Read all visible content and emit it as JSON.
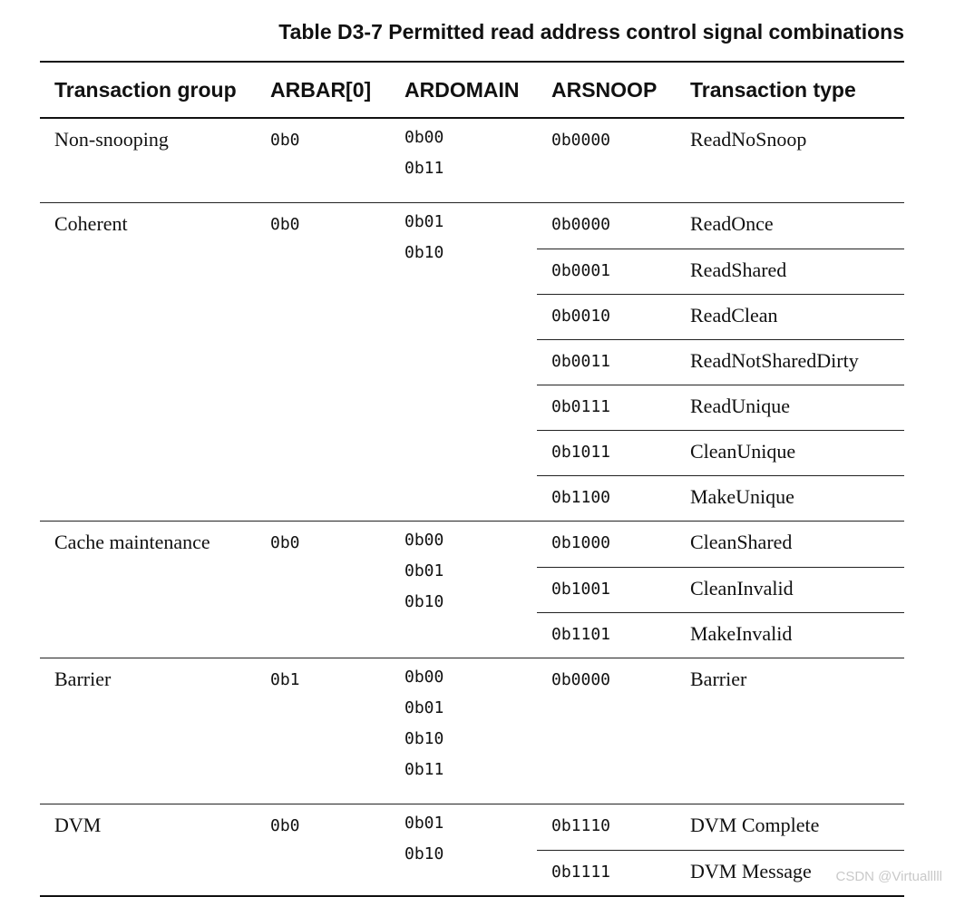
{
  "table": {
    "caption": "Table D3-7 Permitted read address control signal combinations",
    "headers": [
      "Transaction group",
      "ARBAR[0]",
      "ARDOMAIN",
      "ARSNOOP",
      "Transaction type"
    ],
    "groups": [
      {
        "group": "Non-snooping",
        "arbar": "0b0",
        "ardomain": [
          "0b00",
          "0b11"
        ],
        "rows": [
          {
            "arsnoop": "0b0000",
            "type": "ReadNoSnoop"
          }
        ]
      },
      {
        "group": "Coherent",
        "arbar": "0b0",
        "ardomain": [
          "0b01",
          "0b10"
        ],
        "rows": [
          {
            "arsnoop": "0b0000",
            "type": "ReadOnce"
          },
          {
            "arsnoop": "0b0001",
            "type": "ReadShared"
          },
          {
            "arsnoop": "0b0010",
            "type": "ReadClean"
          },
          {
            "arsnoop": "0b0011",
            "type": "ReadNotSharedDirty"
          },
          {
            "arsnoop": "0b0111",
            "type": "ReadUnique"
          },
          {
            "arsnoop": "0b1011",
            "type": "CleanUnique"
          },
          {
            "arsnoop": "0b1100",
            "type": "MakeUnique"
          }
        ]
      },
      {
        "group": "Cache maintenance",
        "arbar": "0b0",
        "ardomain": [
          "0b00",
          "0b01",
          "0b10"
        ],
        "rows": [
          {
            "arsnoop": "0b1000",
            "type": "CleanShared"
          },
          {
            "arsnoop": "0b1001",
            "type": "CleanInvalid"
          },
          {
            "arsnoop": "0b1101",
            "type": "MakeInvalid"
          }
        ]
      },
      {
        "group": "Barrier",
        "arbar": "0b1",
        "ardomain": [
          "0b00",
          "0b01",
          "0b10",
          "0b11"
        ],
        "rows": [
          {
            "arsnoop": "0b0000",
            "type": "Barrier"
          }
        ]
      },
      {
        "group": "DVM",
        "arbar": "0b0",
        "ardomain": [
          "0b01",
          "0b10"
        ],
        "rows": [
          {
            "arsnoop": "0b1110",
            "type": "DVM Complete"
          },
          {
            "arsnoop": "0b1111",
            "type": "DVM Message"
          }
        ]
      }
    ]
  },
  "watermark": "CSDN @Virtualllll"
}
